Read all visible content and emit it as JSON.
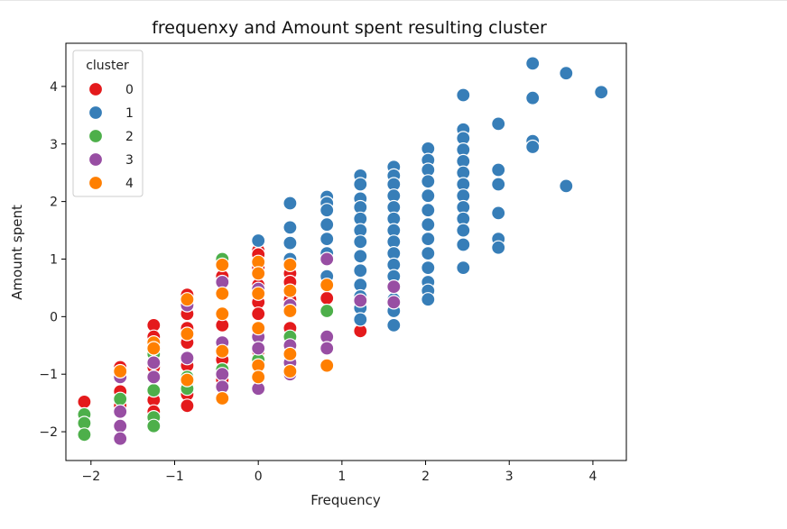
{
  "chart_data": {
    "type": "scatter",
    "title": "frequenxy and Amount spent resulting cluster",
    "xlabel": "Frequency",
    "ylabel": "Amount spent",
    "xlim": [
      -2.3,
      4.4
    ],
    "ylim": [
      -2.5,
      4.75
    ],
    "xticks": [
      -2,
      -1,
      0,
      1,
      2,
      3,
      4
    ],
    "yticks": [
      -2,
      -1,
      0,
      1,
      2,
      3,
      4
    ],
    "xtick_labels": [
      "−2",
      "−1",
      "0",
      "1",
      "2",
      "3",
      "4"
    ],
    "ytick_labels": [
      "−2",
      "−1",
      "0",
      "1",
      "2",
      "3",
      "4"
    ],
    "grid": false,
    "legend": {
      "title": "cluster",
      "placement": "top-left",
      "entries": [
        "0",
        "1",
        "2",
        "3",
        "4"
      ]
    },
    "series": [
      {
        "name": "0",
        "color": "#e41a1c",
        "points": [
          [
            -2.08,
            -1.48
          ],
          [
            -1.65,
            -0.88
          ],
          [
            -1.65,
            -1.3
          ],
          [
            -1.65,
            -1.55
          ],
          [
            -1.25,
            -0.15
          ],
          [
            -1.25,
            -0.35
          ],
          [
            -1.25,
            -0.58
          ],
          [
            -1.25,
            -0.88
          ],
          [
            -1.25,
            -1.45
          ],
          [
            -1.25,
            -1.65
          ],
          [
            -0.85,
            0.38
          ],
          [
            -0.85,
            0.05
          ],
          [
            -0.85,
            -0.2
          ],
          [
            -0.85,
            -0.45
          ],
          [
            -0.85,
            -0.85
          ],
          [
            -0.85,
            -1.15
          ],
          [
            -0.85,
            -1.35
          ],
          [
            -0.85,
            -1.55
          ],
          [
            -0.43,
            1.0
          ],
          [
            -0.43,
            0.7
          ],
          [
            -0.43,
            -0.15
          ],
          [
            -0.43,
            -0.75
          ],
          [
            -0.43,
            -1.1
          ],
          [
            0.0,
            1.15
          ],
          [
            0.0,
            1.08
          ],
          [
            0.0,
            0.85
          ],
          [
            0.0,
            0.55
          ],
          [
            0.0,
            0.25
          ],
          [
            0.0,
            0.05
          ],
          [
            0.0,
            -0.6
          ],
          [
            0.38,
            0.75
          ],
          [
            0.38,
            0.6
          ],
          [
            0.38,
            0.3
          ],
          [
            0.38,
            -0.2
          ],
          [
            0.82,
            0.32
          ],
          [
            1.22,
            -0.25
          ]
        ]
      },
      {
        "name": "1",
        "color": "#377eb8",
        "points": [
          [
            0.0,
            1.32
          ],
          [
            0.38,
            1.97
          ],
          [
            0.38,
            1.55
          ],
          [
            0.38,
            1.28
          ],
          [
            0.38,
            1.0
          ],
          [
            0.82,
            2.08
          ],
          [
            0.82,
            1.97
          ],
          [
            0.82,
            1.85
          ],
          [
            0.82,
            1.6
          ],
          [
            0.82,
            1.35
          ],
          [
            0.82,
            1.1
          ],
          [
            0.82,
            0.7
          ],
          [
            1.22,
            2.45
          ],
          [
            1.22,
            2.3
          ],
          [
            1.22,
            2.05
          ],
          [
            1.22,
            1.9
          ],
          [
            1.22,
            1.7
          ],
          [
            1.22,
            1.5
          ],
          [
            1.22,
            1.3
          ],
          [
            1.22,
            1.05
          ],
          [
            1.22,
            0.8
          ],
          [
            1.22,
            0.55
          ],
          [
            1.22,
            0.35
          ],
          [
            1.22,
            0.15
          ],
          [
            1.22,
            -0.05
          ],
          [
            1.62,
            2.6
          ],
          [
            1.62,
            2.45
          ],
          [
            1.62,
            2.3
          ],
          [
            1.62,
            2.1
          ],
          [
            1.62,
            1.9
          ],
          [
            1.62,
            1.7
          ],
          [
            1.62,
            1.5
          ],
          [
            1.62,
            1.3
          ],
          [
            1.62,
            1.1
          ],
          [
            1.62,
            0.9
          ],
          [
            1.62,
            0.7
          ],
          [
            1.62,
            0.5
          ],
          [
            1.62,
            0.3
          ],
          [
            1.62,
            0.1
          ],
          [
            1.62,
            -0.15
          ],
          [
            2.03,
            2.92
          ],
          [
            2.03,
            2.72
          ],
          [
            2.03,
            2.55
          ],
          [
            2.03,
            2.35
          ],
          [
            2.03,
            2.1
          ],
          [
            2.03,
            1.85
          ],
          [
            2.03,
            1.6
          ],
          [
            2.03,
            1.35
          ],
          [
            2.03,
            1.1
          ],
          [
            2.03,
            0.85
          ],
          [
            2.03,
            0.6
          ],
          [
            2.03,
            0.45
          ],
          [
            2.03,
            0.3
          ],
          [
            2.45,
            3.85
          ],
          [
            2.45,
            3.25
          ],
          [
            2.45,
            3.1
          ],
          [
            2.45,
            2.9
          ],
          [
            2.45,
            2.7
          ],
          [
            2.45,
            2.5
          ],
          [
            2.45,
            2.3
          ],
          [
            2.45,
            2.1
          ],
          [
            2.45,
            1.9
          ],
          [
            2.45,
            1.7
          ],
          [
            2.45,
            1.5
          ],
          [
            2.45,
            1.25
          ],
          [
            2.45,
            0.85
          ],
          [
            2.87,
            3.35
          ],
          [
            2.87,
            2.55
          ],
          [
            2.87,
            2.3
          ],
          [
            2.87,
            1.8
          ],
          [
            2.87,
            1.35
          ],
          [
            2.87,
            1.2
          ],
          [
            3.28,
            4.4
          ],
          [
            3.28,
            3.8
          ],
          [
            3.28,
            3.05
          ],
          [
            3.28,
            2.95
          ],
          [
            3.68,
            4.23
          ],
          [
            3.68,
            2.27
          ],
          [
            4.1,
            3.9
          ]
        ]
      },
      {
        "name": "2",
        "color": "#4daf4a",
        "points": [
          [
            -2.08,
            -1.7
          ],
          [
            -2.08,
            -1.85
          ],
          [
            -2.08,
            -2.05
          ],
          [
            -1.65,
            -1.43
          ],
          [
            -1.25,
            -0.65
          ],
          [
            -1.25,
            -1.28
          ],
          [
            -1.25,
            -1.75
          ],
          [
            -1.25,
            -1.9
          ],
          [
            -0.85,
            -1.05
          ],
          [
            -0.85,
            -1.25
          ],
          [
            -0.43,
            1.0
          ],
          [
            -0.43,
            -0.92
          ],
          [
            0.0,
            -0.75
          ],
          [
            0.38,
            -0.35
          ],
          [
            0.82,
            0.1
          ]
        ]
      },
      {
        "name": "3",
        "color": "#984ea3",
        "points": [
          [
            -1.65,
            -1.05
          ],
          [
            -1.65,
            -1.65
          ],
          [
            -1.65,
            -1.9
          ],
          [
            -1.65,
            -2.12
          ],
          [
            -1.25,
            -0.8
          ],
          [
            -1.25,
            -1.05
          ],
          [
            -0.85,
            0.2
          ],
          [
            -0.85,
            -0.72
          ],
          [
            -0.43,
            0.6
          ],
          [
            -0.43,
            -0.45
          ],
          [
            -0.43,
            -1.0
          ],
          [
            -0.43,
            -1.22
          ],
          [
            0.0,
            0.48
          ],
          [
            0.0,
            -0.35
          ],
          [
            0.0,
            -0.55
          ],
          [
            0.0,
            -1.25
          ],
          [
            0.38,
            0.2
          ],
          [
            0.38,
            -0.5
          ],
          [
            0.38,
            -0.8
          ],
          [
            0.38,
            -1.0
          ],
          [
            0.82,
            1.0
          ],
          [
            0.82,
            -0.35
          ],
          [
            0.82,
            -0.55
          ],
          [
            1.22,
            0.28
          ],
          [
            1.62,
            0.52
          ],
          [
            1.62,
            0.25
          ]
        ]
      },
      {
        "name": "4",
        "color": "#ff7f00",
        "points": [
          [
            -1.65,
            -0.95
          ],
          [
            -1.25,
            -0.45
          ],
          [
            -1.25,
            -0.55
          ],
          [
            -0.85,
            0.3
          ],
          [
            -0.85,
            -0.3
          ],
          [
            -0.85,
            -1.1
          ],
          [
            -0.43,
            0.9
          ],
          [
            -0.43,
            0.4
          ],
          [
            -0.43,
            0.05
          ],
          [
            -0.43,
            -0.6
          ],
          [
            -0.43,
            -1.42
          ],
          [
            0.0,
            0.95
          ],
          [
            0.0,
            0.75
          ],
          [
            0.0,
            0.4
          ],
          [
            0.0,
            -0.2
          ],
          [
            0.0,
            -0.85
          ],
          [
            0.0,
            -1.05
          ],
          [
            0.38,
            0.9
          ],
          [
            0.38,
            0.45
          ],
          [
            0.38,
            0.1
          ],
          [
            0.38,
            -0.65
          ],
          [
            0.38,
            -0.95
          ],
          [
            0.82,
            0.55
          ],
          [
            0.82,
            -0.85
          ]
        ]
      }
    ]
  }
}
